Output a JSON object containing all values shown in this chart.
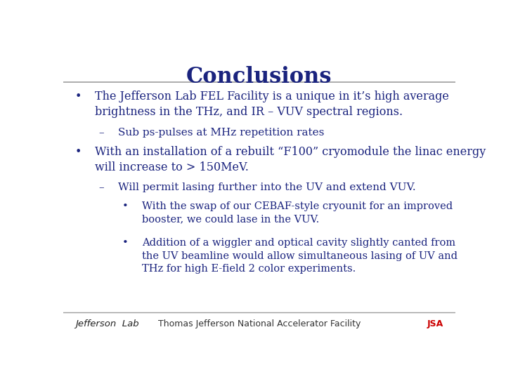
{
  "title": "Conclusions",
  "title_color": "#1a237e",
  "title_fontsize": 22,
  "title_fontstyle": "bold",
  "background_color": "#ffffff",
  "text_color": "#1a237e",
  "body_fontsize": 11.5,
  "footer_text": "Thomas Jefferson National Accelerator Facility",
  "footer_fontsize": 9,
  "header_line_color": "#9e9e9e",
  "footer_line_color": "#9e9e9e",
  "bullets": [
    {
      "level": 1,
      "bullet": "•",
      "indent": 0.03,
      "text": "The Jefferson Lab FEL Facility is a unique in it’s high average\nbrightness in the THz, and IR – VUV spectral regions."
    },
    {
      "level": 2,
      "bullet": "–",
      "indent": 0.09,
      "text": "Sub ps-pulses at MHz repetition rates"
    },
    {
      "level": 1,
      "bullet": "•",
      "indent": 0.03,
      "text": "With an installation of a rebuilt “F100” cryomodule the linac energy\nwill increase to > 150MeV."
    },
    {
      "level": 2,
      "bullet": "–",
      "indent": 0.09,
      "text": "Will permit lasing further into the UV and extend VUV."
    },
    {
      "level": 3,
      "bullet": "•",
      "indent": 0.15,
      "text": "With the swap of our CEBAF-style cryounit for an improved\nbooster, we could lase in the VUV."
    },
    {
      "level": 3,
      "bullet": "•",
      "indent": 0.15,
      "text": "Addition of a wiggler and optical cavity slightly canted from\nthe UV beamline would allow simultaneous lasing of UV and\nTHz for high E-field 2 color experiments."
    }
  ]
}
